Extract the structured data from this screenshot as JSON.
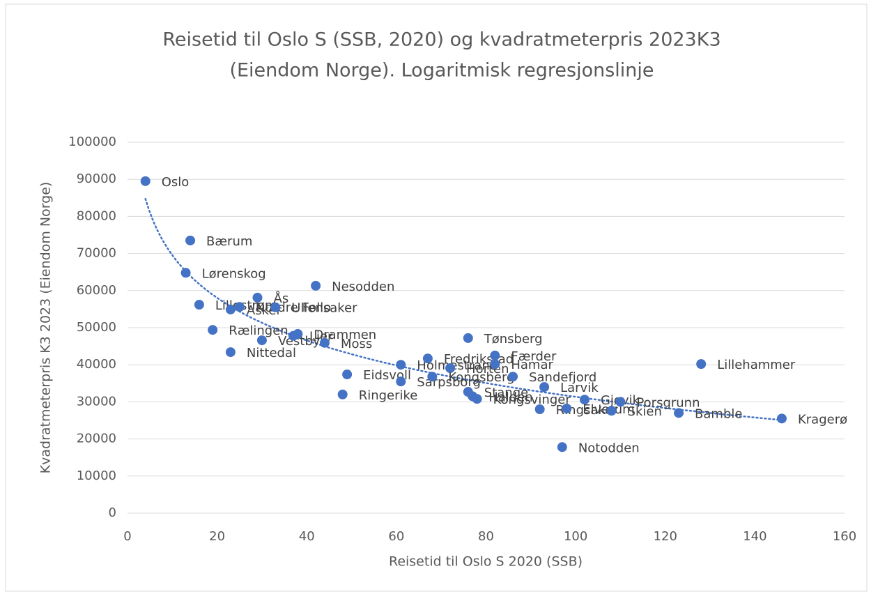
{
  "chart_data": {
    "type": "scatter",
    "title": [
      "Reisetid til Oslo S (SSB, 2020) og kvadratmeterpris 2023K3",
      "(Eiendom Norge). Logaritmisk regresjonslinje"
    ],
    "x_label": "Reisetid til Oslo S 2020 (SSB)",
    "y_label": "Kvadratmeterpris K3 2023 (Eiendom Norge)",
    "color": "#4472c4",
    "trendline": "logarithmic",
    "grid": true,
    "xlim": [
      0,
      160
    ],
    "xticks": [
      0,
      20,
      40,
      60,
      80,
      100,
      120,
      140,
      160
    ],
    "ylim": [
      0,
      100000
    ],
    "yticks": [
      0,
      10000,
      20000,
      30000,
      40000,
      50000,
      60000,
      70000,
      80000,
      90000,
      100000
    ],
    "labels": [
      "Oslo",
      "Bærum",
      "Lørenskog",
      "Lillestrøm",
      "Rælingen",
      "Nittedal",
      "Asker",
      "Nordre Follo",
      "Ås",
      "Ullensaker",
      "Vestby",
      "Lier",
      "Drammen",
      "Moss",
      "Nesodden",
      "Eidsvoll",
      "Ringerike",
      "Sarpsborg",
      "Holmestrand",
      "Fredrikstad",
      "Horten",
      "Kongsberg",
      "Tønsberg",
      "Færder",
      "Hamar",
      "Sandefjord",
      "Stange",
      "Halden",
      "Kongsvinger",
      "Larvik",
      "Ringsaker",
      "Elverum",
      "Gjøvik",
      "Skien",
      "Porsgrunn",
      "Bamble",
      "Lillehammer",
      "Kragerø",
      "Notodden"
    ],
    "x": [
      4,
      14,
      13,
      16,
      19,
      23,
      23,
      25,
      29,
      33,
      30,
      37,
      38,
      44,
      42,
      49,
      48,
      61,
      61,
      67,
      72,
      68,
      76,
      82,
      82,
      86,
      76,
      77,
      78,
      93,
      92,
      98,
      102,
      108,
      110,
      123,
      128,
      146,
      97
    ],
    "values": [
      89500,
      73500,
      64800,
      56200,
      49400,
      43400,
      54900,
      55600,
      58100,
      55500,
      46600,
      47800,
      48300,
      45900,
      61300,
      37400,
      32000,
      35500,
      40000,
      41700,
      39100,
      36800,
      47200,
      42500,
      40200,
      36800,
      32700,
      31500,
      30800,
      34000,
      28000,
      28200,
      30600,
      27600,
      30000,
      27000,
      40200,
      25500,
      17800
    ]
  }
}
